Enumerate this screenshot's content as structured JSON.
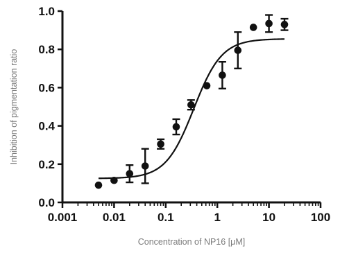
{
  "chart_data": {
    "type": "scatter",
    "title": "",
    "xlabel": "Concentration of NP16 [μM]",
    "ylabel": "Inhibition of pigmentation ratio",
    "x_scale": "log",
    "xlim": [
      0.001,
      100
    ],
    "ylim": [
      0.0,
      1.0
    ],
    "grid": false,
    "x_ticks": [
      0.001,
      0.01,
      0.1,
      1,
      10,
      100
    ],
    "x_tick_labels": [
      "0.001",
      "0.01",
      "0.1",
      "1",
      "10",
      "100"
    ],
    "y_ticks": [
      0.0,
      0.2,
      0.4,
      0.6,
      0.8,
      1.0
    ],
    "y_tick_labels": [
      "0.0",
      "0.2",
      "0.4",
      "0.6",
      "0.8",
      "1.0"
    ],
    "series": [
      {
        "type": "scatter",
        "marker": "circle",
        "color": "#111111",
        "points": [
          {
            "x": 0.005,
            "y": 0.09,
            "err": 0
          },
          {
            "x": 0.01,
            "y": 0.115,
            "err": 0
          },
          {
            "x": 0.02,
            "y": 0.15,
            "err": 0.045
          },
          {
            "x": 0.04,
            "y": 0.19,
            "err": 0.09
          },
          {
            "x": 0.08,
            "y": 0.305,
            "err": 0.025
          },
          {
            "x": 0.16,
            "y": 0.395,
            "err": 0.04
          },
          {
            "x": 0.31,
            "y": 0.51,
            "err": 0.025
          },
          {
            "x": 0.625,
            "y": 0.61,
            "err": 0
          },
          {
            "x": 1.25,
            "y": 0.665,
            "err": 0.07
          },
          {
            "x": 2.5,
            "y": 0.795,
            "err": 0.095
          },
          {
            "x": 5,
            "y": 0.915,
            "err": 0
          },
          {
            "x": 10,
            "y": 0.935,
            "err": 0.045
          },
          {
            "x": 20,
            "y": 0.93,
            "err": 0.03
          }
        ]
      },
      {
        "type": "line",
        "style": "fit-curve",
        "color": "#111111",
        "model": "four-parameter logistic",
        "bottom": 0.125,
        "top": 0.855,
        "ec50": 0.35,
        "hill": 1.6,
        "x_range": [
          0.005,
          20
        ]
      }
    ]
  }
}
